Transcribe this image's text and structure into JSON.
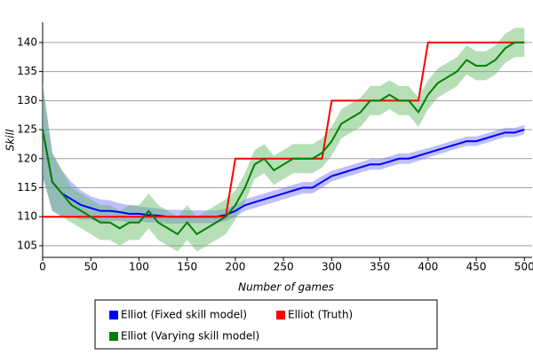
{
  "chart_data": {
    "type": "line",
    "xlabel": "Number of games",
    "ylabel": "Skill",
    "xlim": [
      0,
      508
    ],
    "ylim": [
      103,
      143.5
    ],
    "xticks": [
      0,
      50,
      100,
      150,
      200,
      250,
      300,
      350,
      400,
      450,
      500
    ],
    "yticks": [
      105,
      110,
      115,
      120,
      125,
      130,
      135,
      140
    ],
    "grid": true,
    "x": [
      0,
      10,
      20,
      30,
      40,
      50,
      60,
      70,
      80,
      90,
      100,
      110,
      120,
      130,
      140,
      150,
      160,
      170,
      180,
      190,
      200,
      210,
      220,
      230,
      240,
      250,
      260,
      270,
      280,
      290,
      300,
      310,
      320,
      330,
      340,
      350,
      360,
      370,
      380,
      390,
      400,
      410,
      420,
      430,
      440,
      450,
      460,
      470,
      480,
      490,
      500
    ],
    "series": [
      {
        "name": "Elliot (Fixed skill model)",
        "color": "#0000ff",
        "band_color": "#7070ff",
        "values": [
          125,
          116,
          114,
          113,
          112,
          111.5,
          111,
          111,
          110.8,
          110.5,
          110.5,
          110.3,
          110.2,
          110,
          110,
          110,
          110,
          110,
          110,
          110.3,
          111,
          112,
          112.5,
          113,
          113.5,
          114,
          114.5,
          115,
          115,
          116,
          117,
          117.5,
          118,
          118.5,
          119,
          119,
          119.5,
          120,
          120,
          120.5,
          121,
          121.5,
          122,
          122.5,
          123,
          123,
          123.5,
          124,
          124.5,
          124.5,
          125
        ],
        "band": [
          8,
          5,
          4,
          3,
          2.5,
          2,
          2,
          1.8,
          1.5,
          1.5,
          1.3,
          1.3,
          1.2,
          1.2,
          1.2,
          1.1,
          1.1,
          1.1,
          1.1,
          1.1,
          1,
          1,
          1,
          1,
          1,
          1,
          1,
          1,
          1,
          1,
          0.9,
          0.9,
          0.9,
          0.9,
          0.9,
          0.9,
          0.9,
          0.9,
          0.9,
          0.9,
          0.8,
          0.8,
          0.8,
          0.8,
          0.8,
          0.8,
          0.8,
          0.8,
          0.8,
          0.8,
          0.8
        ]
      },
      {
        "name": "Elliot (Truth)",
        "color": "#ff0000",
        "values": [
          110,
          110,
          110,
          110,
          110,
          110,
          110,
          110,
          110,
          110,
          110,
          110,
          110,
          110,
          110,
          110,
          110,
          110,
          110,
          110,
          120,
          120,
          120,
          120,
          120,
          120,
          120,
          120,
          120,
          120,
          130,
          130,
          130,
          130,
          130,
          130,
          130,
          130,
          130,
          130,
          140,
          140,
          140,
          140,
          140,
          140,
          140,
          140,
          140,
          140,
          140
        ]
      },
      {
        "name": "Elliot (Varying skill model)",
        "color": "#008000",
        "band_color": "#60b860",
        "values": [
          125,
          116,
          114,
          112,
          111,
          110,
          109,
          109,
          108,
          109,
          109,
          111,
          109,
          108,
          107,
          109,
          107,
          108,
          109,
          110,
          112,
          115,
          119,
          120,
          118,
          119,
          120,
          120,
          120,
          121,
          123,
          126,
          127,
          128,
          130,
          130,
          131,
          130,
          130,
          128,
          131,
          133,
          134,
          135,
          137,
          136,
          136,
          137,
          139,
          140,
          140
        ],
        "band": [
          8,
          5,
          4,
          3,
          3,
          3,
          3,
          3,
          3,
          3,
          3,
          3,
          3,
          3,
          3,
          3,
          3,
          3,
          3,
          3,
          2.5,
          2.5,
          2.5,
          2.5,
          2.5,
          2.5,
          2.5,
          2.5,
          2.5,
          2.5,
          2.5,
          2.5,
          2.5,
          2.5,
          2.5,
          2.5,
          2.5,
          2.5,
          2.5,
          2.5,
          2.5,
          2.5,
          2.5,
          2.5,
          2.5,
          2.5,
          2.5,
          2.5,
          2.5,
          2.5,
          2.5
        ]
      }
    ]
  }
}
